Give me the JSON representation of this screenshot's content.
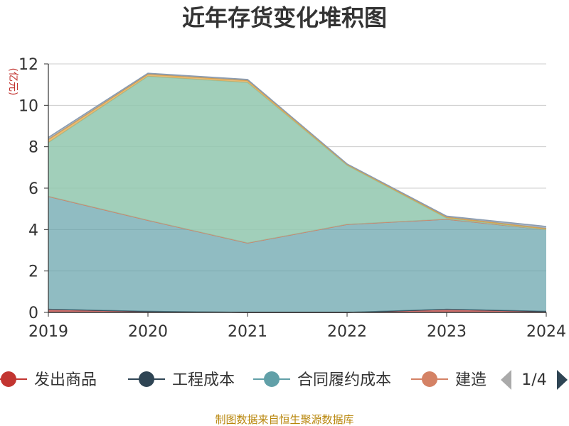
{
  "chart_data": {
    "type": "area",
    "title": "近年存货变化堆积图",
    "ylabel": "(亿元)",
    "ylim": [
      0,
      12
    ],
    "yticks": [
      0,
      2,
      4,
      6,
      8,
      10,
      12
    ],
    "categories": [
      "2019",
      "2020",
      "2021",
      "2022",
      "2023",
      "2024"
    ],
    "series": [
      {
        "name": "发出商品",
        "color": "#c23531",
        "values": [
          0.15,
          0.05,
          0.0,
          0.0,
          0.15,
          0.05
        ]
      },
      {
        "name": "工程成本",
        "color": "#2f4554",
        "values": [
          0.0,
          0.0,
          0.0,
          0.0,
          0.0,
          0.0
        ]
      },
      {
        "name": "合同履约成本",
        "color": "#61a0a8",
        "values": [
          5.45,
          4.4,
          3.35,
          4.25,
          4.35,
          3.95
        ]
      },
      {
        "name": "建造",
        "color": "#d48265",
        "values": [
          0.0,
          0.0,
          0.0,
          0.0,
          0.0,
          0.0
        ]
      },
      {
        "name": "",
        "color": "#91c7ae",
        "values": [
          2.6,
          6.95,
          7.75,
          2.85,
          0.05,
          0.0
        ]
      },
      {
        "name": "",
        "color": "#e0a040",
        "values": [
          0.15,
          0.1,
          0.1,
          0.05,
          0.05,
          0.05
        ]
      },
      {
        "name": "",
        "color": "#8a9bb0",
        "values": [
          0.1,
          0.05,
          0.05,
          0.02,
          0.05,
          0.1
        ]
      }
    ],
    "grid": true
  },
  "legend": {
    "page": "1/4"
  },
  "footer": {
    "source": "制图数据来自恒生聚源数据库"
  }
}
